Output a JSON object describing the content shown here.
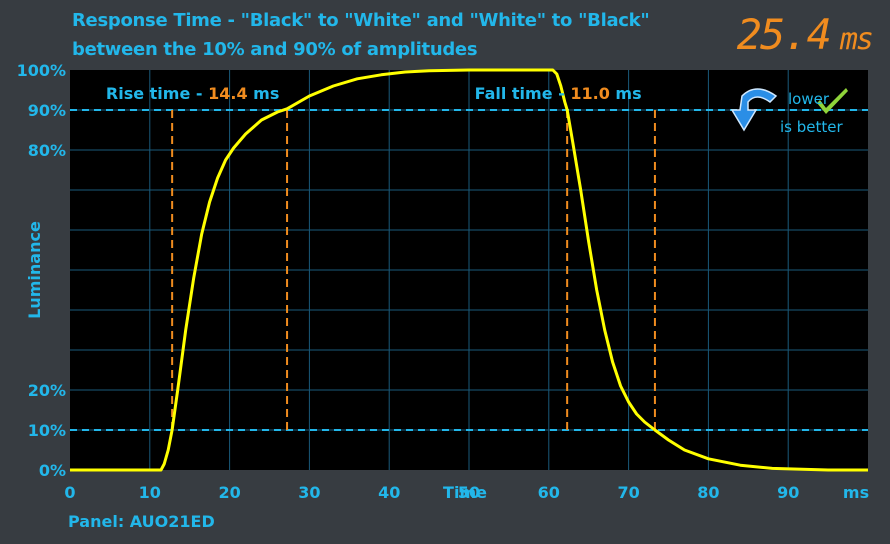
{
  "header": {
    "title_line1": "Response Time - \"Black\" to \"White\" and \"White\" to \"Black\"",
    "title_line2": "between the 10% and 90% of amplitudes",
    "total_value": "25.4",
    "total_unit": "ms"
  },
  "footer": {
    "panel_label": "Panel: AUO21ED"
  },
  "badge": {
    "line1": "lower",
    "line2": "is better"
  },
  "colors": {
    "background": "#373c41",
    "plot_bg": "#000000",
    "grid": "#1a5a7a",
    "axis_text": "#22b7ea",
    "curve": "#ffff00",
    "marker": "#f08c1f",
    "threshold": "#22b7ea"
  },
  "chart_data": {
    "type": "line",
    "xlabel": "Time",
    "xunit": "ms",
    "ylabel": "Luminance",
    "xlim": [
      0,
      100
    ],
    "ylim": [
      0,
      100
    ],
    "x_ticks": [
      0,
      10,
      20,
      30,
      40,
      50,
      60,
      70,
      80,
      90
    ],
    "y_tick_labels": [
      {
        "value": 0,
        "label": "0%"
      },
      {
        "value": 10,
        "label": "10%"
      },
      {
        "value": 20,
        "label": "20%"
      },
      {
        "value": 80,
        "label": "80%"
      },
      {
        "value": 90,
        "label": "90%"
      },
      {
        "value": 100,
        "label": "100%"
      }
    ],
    "grid": true,
    "thresholds": [
      10,
      90
    ],
    "rise": {
      "label": "Rise time - ",
      "value": "14.4",
      "unit": " ms",
      "start": 12.8,
      "end": 27.2
    },
    "fall": {
      "label": "Fall time - ",
      "value": "11.0",
      "unit": " ms",
      "start": 62.3,
      "end": 73.3
    },
    "series": [
      {
        "x": [
          0,
          11.4,
          11.8,
          12.3,
          12.8,
          13.5,
          14.5,
          15.5,
          16.5,
          17.5,
          18.5,
          19.5,
          20.5,
          22,
          24,
          26,
          27.2,
          30,
          33,
          36,
          39,
          42,
          45,
          50,
          55,
          60.5,
          61.0,
          61.5,
          62.0,
          62.3,
          63,
          64,
          65,
          66,
          67,
          68,
          69,
          70,
          71,
          72,
          73.3,
          75,
          77,
          80,
          84,
          88,
          95,
          100
        ],
        "y": [
          0,
          0,
          1.5,
          5,
          10,
          20,
          35,
          48,
          59,
          67,
          73,
          77.5,
          80.5,
          84,
          87.5,
          89.5,
          90.3,
          93.5,
          96,
          97.8,
          98.8,
          99.5,
          99.8,
          100,
          100,
          100,
          99,
          96,
          92,
          90,
          82,
          70,
          57,
          45,
          35,
          27,
          21,
          17,
          14,
          12,
          10,
          7.5,
          5,
          2.8,
          1.2,
          0.4,
          0,
          0
        ]
      }
    ]
  }
}
